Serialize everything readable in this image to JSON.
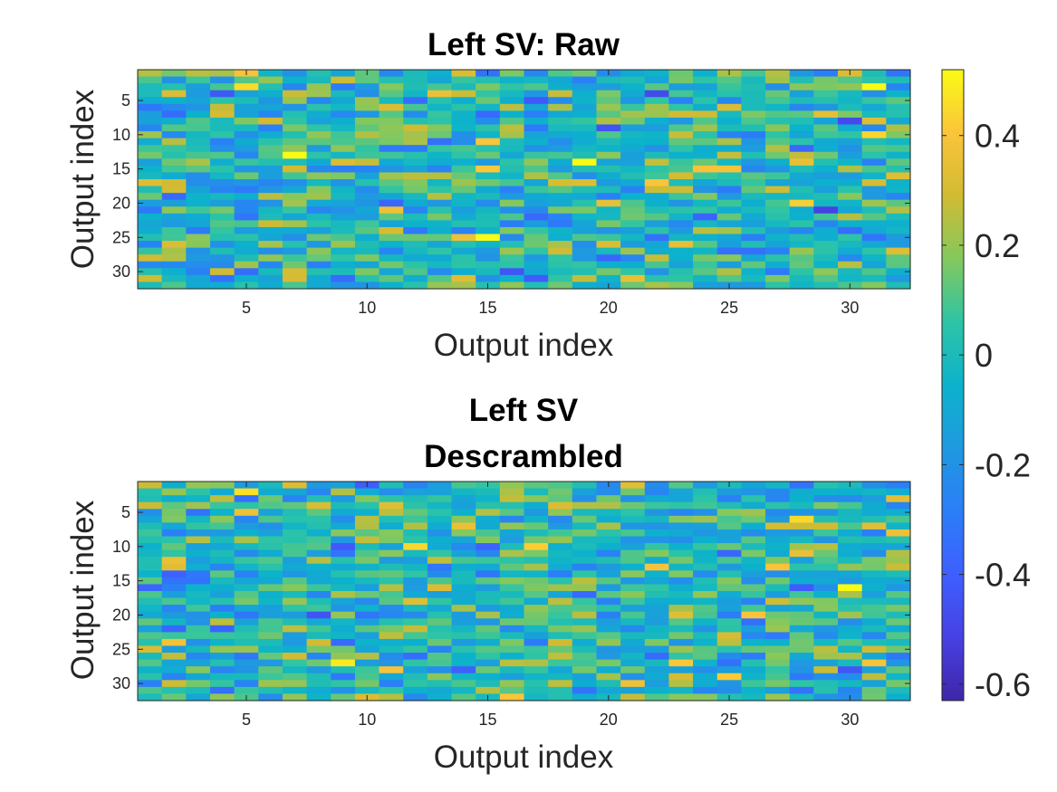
{
  "chart_data": [
    {
      "type": "heatmap",
      "title": [
        "Left SV: Raw"
      ],
      "xlabel": "Output index",
      "ylabel": "Output index",
      "rows": 32,
      "cols": 32,
      "x_ticks": [
        5,
        10,
        15,
        20,
        25,
        30
      ],
      "y_ticks": [
        5,
        10,
        15,
        20,
        25,
        30
      ],
      "value_range": [
        -0.63,
        0.52
      ],
      "seed": 7,
      "values_note": ""
    },
    {
      "type": "heatmap",
      "title": [
        "Left SV",
        "Descrambled"
      ],
      "xlabel": "Output index",
      "ylabel": "Output index",
      "rows": 32,
      "cols": 32,
      "x_ticks": [
        5,
        10,
        15,
        20,
        25,
        30
      ],
      "y_ticks": [
        5,
        10,
        15,
        20,
        25,
        30
      ],
      "value_range": [
        -0.63,
        0.52
      ],
      "seed": 19,
      "values_note": ""
    }
  ],
  "colorbar": {
    "colormap": "parula",
    "min": -0.63,
    "max": 0.52,
    "ticks": [
      0.4,
      0.2,
      0,
      -0.2,
      -0.4,
      -0.6
    ]
  }
}
